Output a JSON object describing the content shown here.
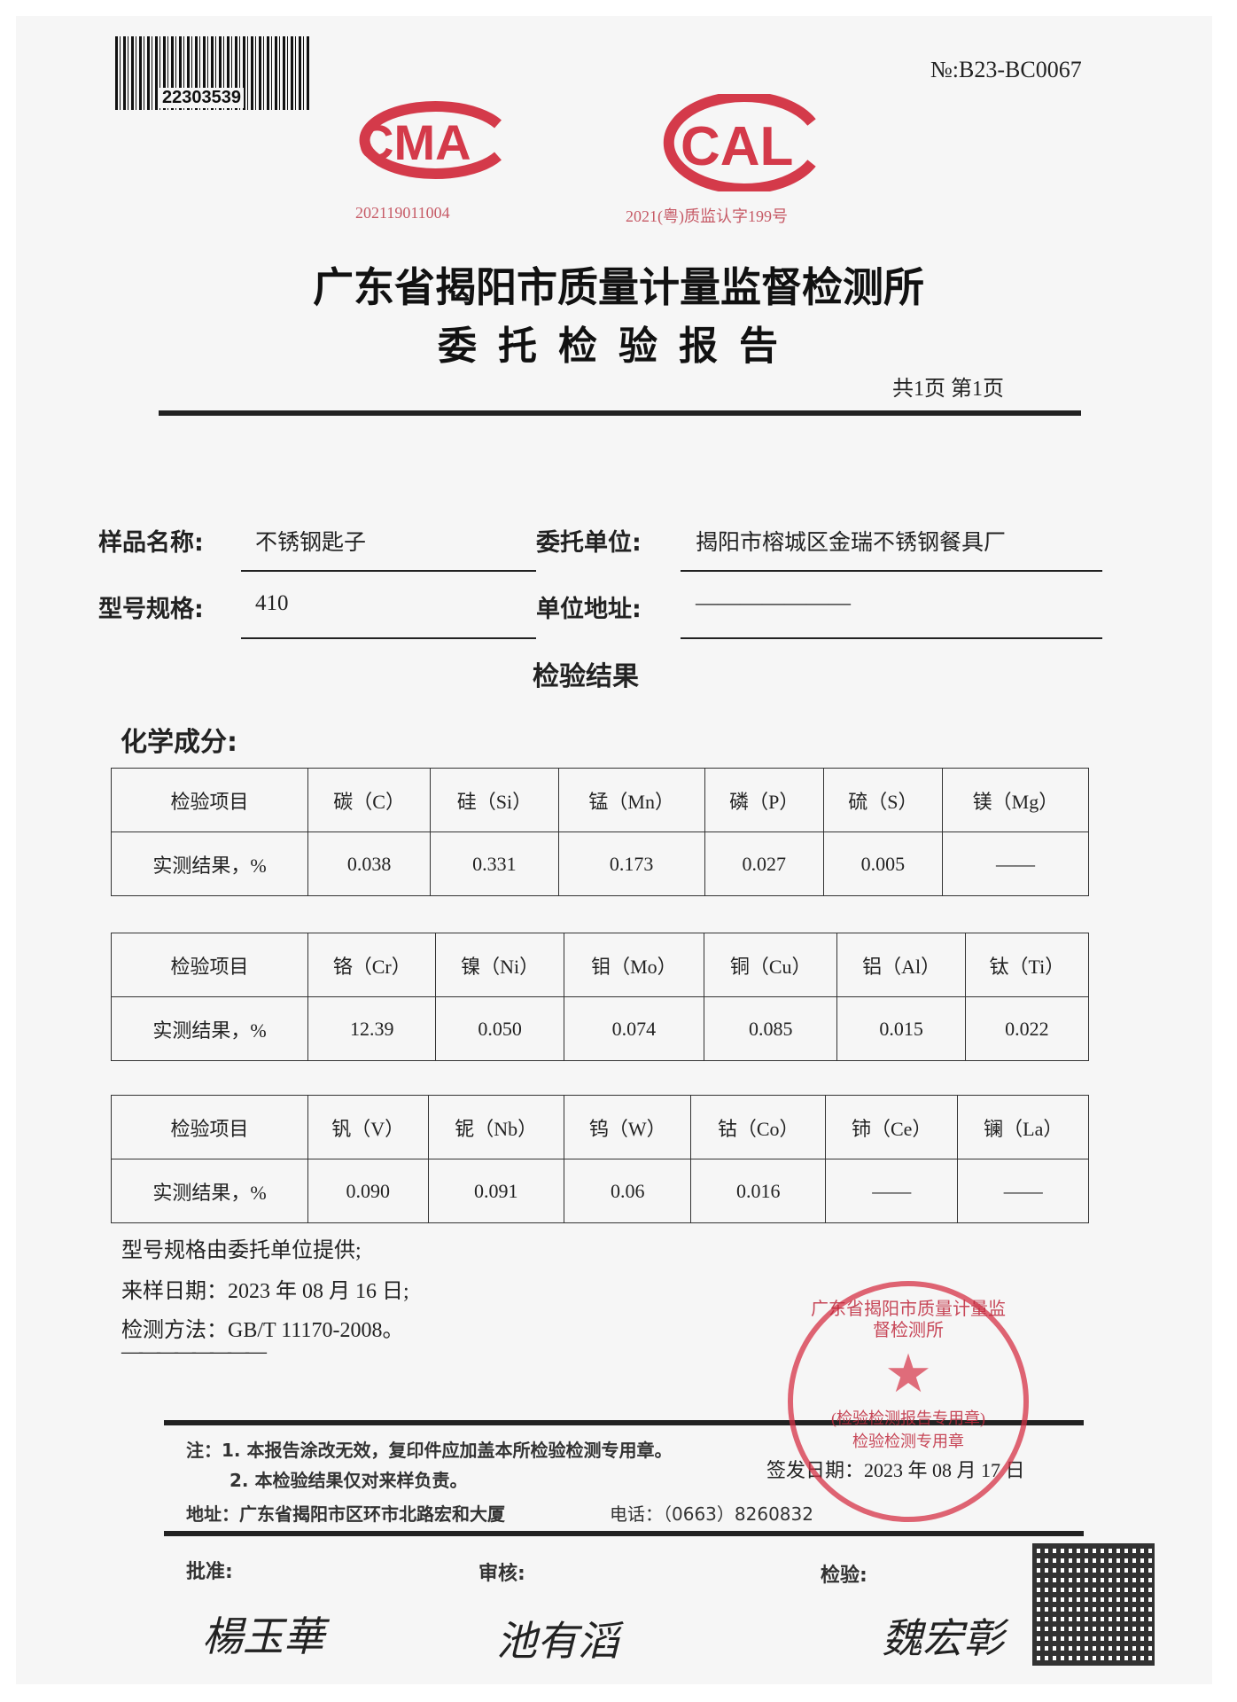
{
  "header": {
    "barcode_number": "22303539",
    "report_no": "№:B23-BC0067",
    "cma_logo": "CMA",
    "cma_number": "202119011004",
    "cal_logo": "CAL",
    "cal_number": "2021(粤)质监认字199号",
    "org_title": "广东省揭阳市质量计量监督检测所",
    "doc_title": "委托检验报告",
    "pages": "共1页 第1页"
  },
  "info": {
    "sample_name_label": "样品名称:",
    "sample_name": "不锈钢匙子",
    "client_label": "委托单位:",
    "client": "揭阳市榕城区金瑞不锈钢餐具厂",
    "model_label": "型号规格:",
    "model": "410",
    "address_label": "单位地址:",
    "address": "———————"
  },
  "results": {
    "heading": "检验结果",
    "section": "化学成分:",
    "tables": [
      {
        "header": [
          "检验项目",
          "碳（C）",
          "硅（Si）",
          "锰（Mn）",
          "磷（P）",
          "硫（S）",
          "镁（Mg）"
        ],
        "row": [
          "实测结果，%",
          "0.038",
          "0.331",
          "0.173",
          "0.027",
          "0.005",
          "——"
        ]
      },
      {
        "header": [
          "检验项目",
          "铬（Cr）",
          "镍（Ni）",
          "钼（Mo）",
          "铜（Cu）",
          "铝（Al）",
          "钛（Ti）"
        ],
        "row": [
          "实测结果，%",
          "12.39",
          "0.050",
          "0.074",
          "0.085",
          "0.015",
          "0.022"
        ]
      },
      {
        "header": [
          "检验项目",
          "钒（V）",
          "铌（Nb）",
          "钨（W）",
          "钴（Co）",
          "铈（Ce）",
          "镧（La）"
        ],
        "row": [
          "实测结果，%",
          "0.090",
          "0.091",
          "0.06",
          "0.016",
          "——",
          "——"
        ]
      }
    ]
  },
  "notes": {
    "line1": "型号规格由委托单位提供;",
    "line2": "来样日期：2023 年 08 月 16 日;",
    "line3": "检测方法：GB/T 11170-2008。",
    "dashes": "————————"
  },
  "stamp": {
    "text": "广东省揭阳市质量计量监督检测所",
    "subtext": "(检验检测报告专用章)",
    "bottom": "检验检测专用章"
  },
  "footer": {
    "note1": "注：1. 本报告涂改无效，复印件应加盖本所检验检测专用章。",
    "note2": "2. 本检验结果仅对来样负责。",
    "issue_date": "签发日期：2023 年 08 月 17 日",
    "address": "地址：广东省揭阳市区环市北路宏和大厦",
    "phone": "电话：（0663）8260832",
    "approve_label": "批准:",
    "review_label": "审核:",
    "inspect_label": "检验:",
    "approve_sig": "楊玉華",
    "review_sig": "池有滔",
    "inspect_sig": "魏宏彰"
  }
}
